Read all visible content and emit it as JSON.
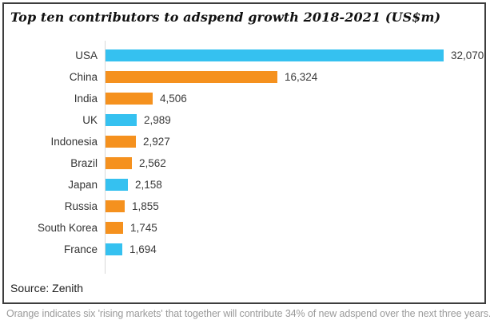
{
  "chart_data": {
    "type": "bar",
    "orientation": "horizontal",
    "title": "Top ten contributors to adspend growth 2018-2021 (US$m)",
    "source": "Source: Zenith",
    "categories": [
      "USA",
      "China",
      "India",
      "UK",
      "Indonesia",
      "Brazil",
      "Japan",
      "Russia",
      "South Korea",
      "France"
    ],
    "values": [
      32070,
      16324,
      4506,
      2989,
      2927,
      2562,
      2158,
      1855,
      1745,
      1694
    ],
    "value_labels": [
      "32,070",
      "16,324",
      "4,506",
      "2,989",
      "2,927",
      "2,562",
      "2,158",
      "1,855",
      "1,745",
      "1,694"
    ],
    "bar_color_keys": [
      "blue",
      "orange",
      "orange",
      "blue",
      "orange",
      "orange",
      "blue",
      "orange",
      "orange",
      "blue"
    ],
    "colors": {
      "blue": "#35C1F0",
      "orange": "#F5911E"
    },
    "xlim": [
      0,
      32070
    ],
    "grid": false,
    "legend_position": "none"
  },
  "caption": "Orange indicates six 'rising markets' that together will contribute 34% of new adspend over the next three years."
}
